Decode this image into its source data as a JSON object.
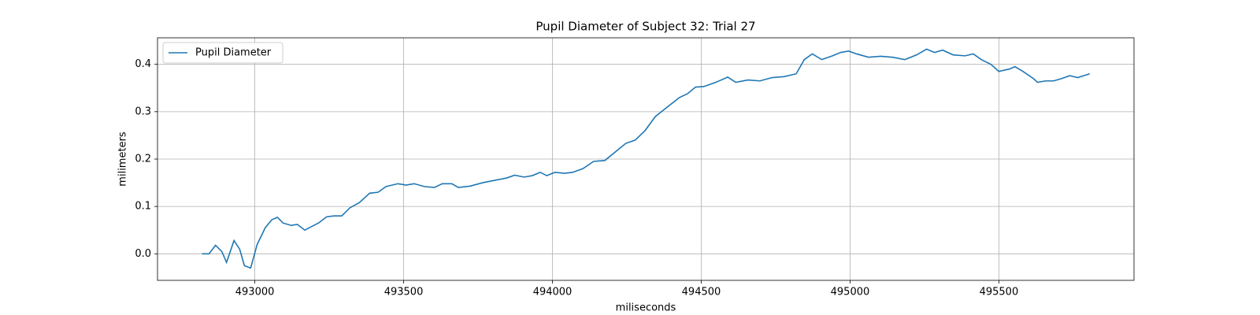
{
  "chart_data": {
    "type": "line",
    "title": "Pupil Diameter of Subject 32: Trial 27",
    "x_label": "miliseconds",
    "y_label": "milimeters",
    "x": [
      492822,
      492846,
      492868,
      492889,
      492905,
      492930,
      492949,
      492965,
      492986,
      493008,
      493035,
      493057,
      493076,
      493095,
      493122,
      493143,
      493168,
      493192,
      493214,
      493241,
      493265,
      493292,
      493319,
      493351,
      493386,
      493414,
      493441,
      493481,
      493508,
      493535,
      493570,
      493603,
      493630,
      493662,
      493684,
      493724,
      493765,
      493805,
      493846,
      493873,
      493905,
      493932,
      493959,
      493981,
      494008,
      494041,
      494068,
      494103,
      494138,
      494176,
      494211,
      494246,
      494278,
      494311,
      494346,
      494386,
      494427,
      494454,
      494481,
      494508,
      494549,
      494589,
      494616,
      494657,
      494697,
      494738,
      494778,
      494819,
      494846,
      494873,
      494905,
      494941,
      494968,
      494995,
      495022,
      495062,
      495103,
      495143,
      495184,
      495224,
      495257,
      495284,
      495311,
      495346,
      495386,
      495414,
      495441,
      495473,
      495500,
      495535,
      495554,
      495581,
      495616,
      495630,
      495657,
      495684,
      495711,
      495738,
      495765,
      495805
    ],
    "series": [
      {
        "name": "Pupil Diameter",
        "color": "#1f77b4",
        "values": [
          0.0,
          0.0,
          0.018,
          0.005,
          -0.018,
          0.028,
          0.01,
          -0.025,
          -0.03,
          0.02,
          0.055,
          0.072,
          0.077,
          0.065,
          0.06,
          0.062,
          0.05,
          0.058,
          0.065,
          0.078,
          0.08,
          0.08,
          0.097,
          0.108,
          0.128,
          0.13,
          0.142,
          0.148,
          0.145,
          0.148,
          0.142,
          0.14,
          0.148,
          0.148,
          0.14,
          0.143,
          0.15,
          0.155,
          0.16,
          0.166,
          0.162,
          0.165,
          0.172,
          0.165,
          0.172,
          0.17,
          0.172,
          0.18,
          0.195,
          0.197,
          0.215,
          0.233,
          0.24,
          0.26,
          0.29,
          0.31,
          0.33,
          0.338,
          0.352,
          0.353,
          0.362,
          0.373,
          0.362,
          0.367,
          0.365,
          0.372,
          0.374,
          0.38,
          0.41,
          0.422,
          0.41,
          0.418,
          0.425,
          0.428,
          0.422,
          0.415,
          0.417,
          0.415,
          0.41,
          0.42,
          0.432,
          0.425,
          0.43,
          0.42,
          0.418,
          0.422,
          0.41,
          0.4,
          0.385,
          0.39,
          0.395,
          0.385,
          0.37,
          0.362,
          0.365,
          0.365,
          0.37,
          0.376,
          0.372,
          0.38
        ]
      }
    ],
    "xlim": [
      492673,
      495954
    ],
    "ylim": [
      -0.056,
      0.456
    ],
    "xticks": [
      493000,
      493500,
      494000,
      494500,
      495000,
      495500
    ],
    "yticks": [
      {
        "value": 0,
        "label": "0.0"
      },
      0.1,
      0.2,
      0.3,
      0.4
    ],
    "grid": true,
    "legend": "upper left"
  }
}
